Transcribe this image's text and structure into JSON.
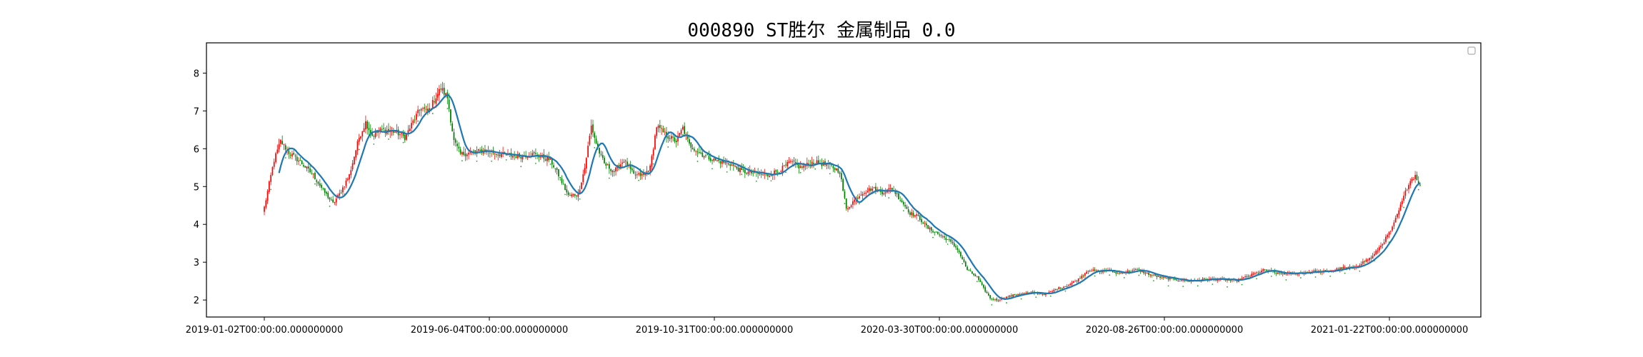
{
  "chart_data": {
    "type": "candlestick",
    "title": "000890 ST胜尔 金属制品 0.0",
    "xlabel": "",
    "ylabel": "",
    "x_tick_labels": [
      "2019-01-02T00:00:00.000000000",
      "2019-06-04T00:00:00.000000000",
      "2019-10-31T00:00:00.000000000",
      "2020-03-30T00:00:00.000000000",
      "2020-08-26T00:00:00.000000000",
      "2021-01-22T00:00:00.000000000"
    ],
    "y_ticks": [
      2,
      3,
      4,
      5,
      6,
      7,
      8
    ],
    "ylim": [
      1.55,
      8.8
    ],
    "grid": false,
    "legend": "top-right (empty)",
    "colors": {
      "up": "#ff0000",
      "down": "#008000",
      "ma_line": "#1f77b4",
      "dots": "#2ca02c"
    },
    "close_keypoints": [
      [
        0,
        4.45
      ],
      [
        6,
        5.7
      ],
      [
        10,
        6.2
      ],
      [
        15,
        5.9
      ],
      [
        22,
        5.65
      ],
      [
        30,
        5.3
      ],
      [
        36,
        4.9
      ],
      [
        42,
        4.55
      ],
      [
        46,
        4.8
      ],
      [
        52,
        5.3
      ],
      [
        58,
        6.3
      ],
      [
        62,
        6.7
      ],
      [
        66,
        6.35
      ],
      [
        72,
        6.5
      ],
      [
        80,
        6.45
      ],
      [
        86,
        6.3
      ],
      [
        92,
        6.8
      ],
      [
        96,
        7.1
      ],
      [
        100,
        6.95
      ],
      [
        104,
        7.3
      ],
      [
        108,
        7.6
      ],
      [
        112,
        7.35
      ],
      [
        116,
        6.2
      ],
      [
        120,
        5.85
      ],
      [
        126,
        5.9
      ],
      [
        135,
        5.95
      ],
      [
        145,
        5.85
      ],
      [
        155,
        5.8
      ],
      [
        165,
        5.85
      ],
      [
        175,
        5.7
      ],
      [
        180,
        5.3
      ],
      [
        186,
        4.75
      ],
      [
        192,
        4.8
      ],
      [
        196,
        5.5
      ],
      [
        200,
        6.6
      ],
      [
        204,
        6.0
      ],
      [
        208,
        5.6
      ],
      [
        214,
        5.4
      ],
      [
        220,
        5.7
      ],
      [
        226,
        5.3
      ],
      [
        232,
        5.3
      ],
      [
        236,
        5.5
      ],
      [
        240,
        6.6
      ],
      [
        246,
        6.35
      ],
      [
        252,
        6.2
      ],
      [
        256,
        6.55
      ],
      [
        260,
        6.1
      ],
      [
        268,
        5.85
      ],
      [
        275,
        5.7
      ],
      [
        285,
        5.6
      ],
      [
        292,
        5.4
      ],
      [
        300,
        5.35
      ],
      [
        308,
        5.3
      ],
      [
        316,
        5.45
      ],
      [
        322,
        5.65
      ],
      [
        328,
        5.5
      ],
      [
        336,
        5.65
      ],
      [
        346,
        5.55
      ],
      [
        352,
        5.4
      ],
      [
        356,
        4.4
      ],
      [
        360,
        4.6
      ],
      [
        366,
        4.85
      ],
      [
        372,
        4.95
      ],
      [
        378,
        4.85
      ],
      [
        384,
        4.95
      ],
      [
        390,
        4.6
      ],
      [
        395,
        4.3
      ],
      [
        400,
        4.2
      ],
      [
        406,
        3.9
      ],
      [
        412,
        3.75
      ],
      [
        418,
        3.6
      ],
      [
        424,
        3.35
      ],
      [
        430,
        2.8
      ],
      [
        436,
        2.6
      ],
      [
        440,
        2.3
      ],
      [
        444,
        2.05
      ],
      [
        448,
        2.0
      ],
      [
        452,
        2.05
      ],
      [
        460,
        2.15
      ],
      [
        470,
        2.2
      ],
      [
        478,
        2.15
      ],
      [
        485,
        2.3
      ],
      [
        492,
        2.4
      ],
      [
        498,
        2.55
      ],
      [
        504,
        2.8
      ],
      [
        510,
        2.75
      ],
      [
        516,
        2.8
      ],
      [
        522,
        2.7
      ],
      [
        528,
        2.75
      ],
      [
        534,
        2.8
      ],
      [
        540,
        2.7
      ],
      [
        548,
        2.6
      ],
      [
        556,
        2.55
      ],
      [
        566,
        2.5
      ],
      [
        576,
        2.55
      ],
      [
        586,
        2.55
      ],
      [
        594,
        2.5
      ],
      [
        600,
        2.6
      ],
      [
        606,
        2.7
      ],
      [
        612,
        2.8
      ],
      [
        620,
        2.7
      ],
      [
        630,
        2.7
      ],
      [
        640,
        2.75
      ],
      [
        650,
        2.75
      ],
      [
        660,
        2.85
      ],
      [
        666,
        2.85
      ],
      [
        672,
        3.0
      ],
      [
        678,
        3.15
      ],
      [
        684,
        3.5
      ],
      [
        690,
        3.9
      ],
      [
        696,
        4.6
      ],
      [
        700,
        5.1
      ],
      [
        704,
        5.3
      ],
      [
        707,
        5.0
      ]
    ],
    "ma_line": "smoothed moving average of close"
  }
}
